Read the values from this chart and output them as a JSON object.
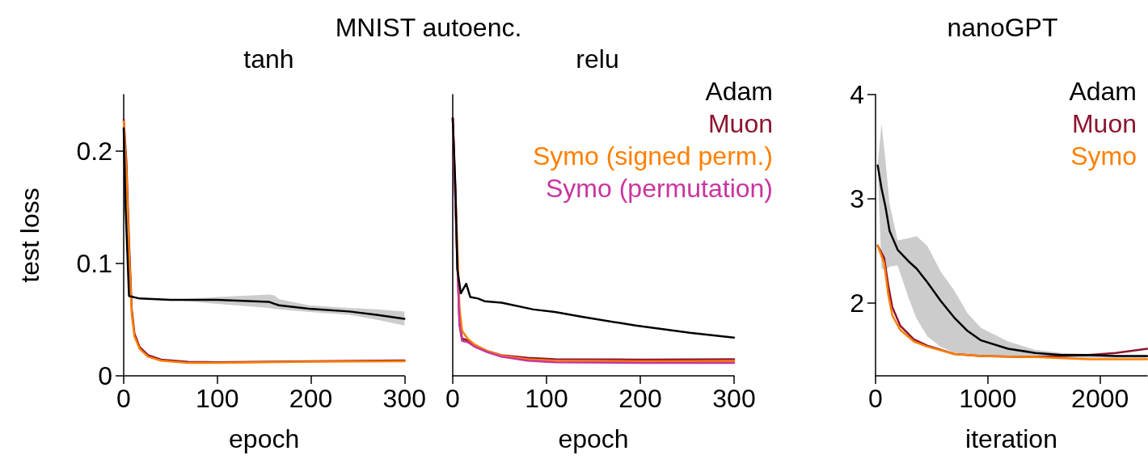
{
  "chart_data": [
    {
      "type": "line",
      "title": "MNIST autoenc.",
      "subtitle": "tanh",
      "xlabel": "epoch",
      "ylabel": "test loss",
      "xlim": [
        0,
        300
      ],
      "xticks": [
        0,
        100,
        200,
        300
      ],
      "ylim": [
        0,
        0.25
      ],
      "yticks": [
        0,
        0.1,
        0.2
      ],
      "series": [
        {
          "color": "#000000",
          "x": [
            0,
            2,
            5.7,
            17,
            50,
            100,
            155,
            161,
            166,
            198,
            241,
            270,
            300
          ],
          "values": [
            0.22,
            0.15,
            0.071,
            0.0687,
            0.0675,
            0.0675,
            0.0658,
            0.064,
            0.0627,
            0.0596,
            0.0572,
            0.0543,
            0.0507
          ],
          "lower": [
            0.22,
            0.15,
            0.071,
            0.0687,
            0.0675,
            0.064,
            0.0603,
            0.0595,
            0.059,
            0.0567,
            0.0543,
            0.05,
            0.0447
          ],
          "upper": [
            0.22,
            0.15,
            0.071,
            0.0687,
            0.0675,
            0.07,
            0.0722,
            0.0715,
            0.068,
            0.0627,
            0.0603,
            0.059,
            0.0572
          ]
        },
        {
          "color": "#8c1530",
          "x": [
            0,
            2.9,
            5.7,
            8.6,
            11.5,
            17,
            26,
            40,
            69,
            100,
            200,
            300
          ],
          "values": [
            0.228,
            0.19,
            0.119,
            0.059,
            0.0376,
            0.0256,
            0.0184,
            0.0144,
            0.0124,
            0.012,
            0.013,
            0.0136
          ]
        },
        {
          "color": "#ff7f00",
          "x": [
            0,
            2.9,
            5.7,
            8.6,
            11.5,
            17,
            26,
            40,
            69,
            100,
            200,
            300
          ],
          "values": [
            0.226,
            0.18,
            0.11,
            0.055,
            0.035,
            0.024,
            0.017,
            0.0135,
            0.0115,
            0.0115,
            0.0125,
            0.013
          ]
        }
      ]
    },
    {
      "type": "line",
      "subtitle": "relu",
      "xlabel": "epoch",
      "xlim": [
        0,
        300
      ],
      "xticks": [
        0,
        100,
        200,
        300
      ],
      "ylim": [
        0,
        0.25
      ],
      "tick_labels": "x",
      "legend": "top right",
      "series": [
        {
          "name": "Adam",
          "color": "#000000",
          "x": [
            0,
            2.9,
            4.9,
            8.6,
            14.4,
            18.7,
            27,
            34,
            52,
            86,
            109,
            138,
            195,
            253,
            300
          ],
          "values": [
            0.229,
            0.167,
            0.095,
            0.0734,
            0.0818,
            0.07,
            0.0687,
            0.0663,
            0.065,
            0.059,
            0.0567,
            0.0524,
            0.0447,
            0.0383,
            0.034
          ]
        },
        {
          "name": "Muon",
          "color": "#8c1530",
          "x": [
            0,
            4.3,
            7.2,
            10,
            15.8,
            23,
            37,
            52,
            80,
            109,
            200,
            300
          ],
          "values": [
            0.229,
            0.119,
            0.047,
            0.033,
            0.0316,
            0.027,
            0.022,
            0.0184,
            0.016,
            0.0148,
            0.0144,
            0.0148
          ]
        },
        {
          "name": "Symo (signed perm.)",
          "color": "#ff7f00",
          "x": [
            0,
            4.3,
            7.2,
            10,
            15.8,
            23,
            37,
            52,
            80,
            109,
            200,
            300
          ],
          "values": [
            0.229,
            0.13,
            0.06,
            0.04,
            0.033,
            0.028,
            0.022,
            0.018,
            0.0148,
            0.0135,
            0.013,
            0.0132
          ]
        },
        {
          "name": "Symo (permutation)",
          "color": "#c8359f",
          "x": [
            0,
            4.3,
            7.2,
            10,
            15.8,
            23,
            37,
            52,
            80,
            109,
            200,
            300
          ],
          "values": [
            0.229,
            0.115,
            0.045,
            0.031,
            0.03,
            0.026,
            0.021,
            0.017,
            0.0135,
            0.012,
            0.0115,
            0.0115
          ]
        }
      ]
    },
    {
      "type": "line",
      "title": "nanoGPT",
      "xlabel": "iteration",
      "xlim": [
        0,
        2420
      ],
      "xticks": [
        0,
        1000,
        2000
      ],
      "ylim": [
        1.3,
        4
      ],
      "yticks": [
        2,
        3,
        4
      ],
      "legend": "top right",
      "series": [
        {
          "name": "Adam",
          "color": "#000000",
          "x": [
            19,
            53,
            89,
            125,
            197,
            293,
            365,
            460,
            580,
            700,
            820,
            940,
            1180,
            1420,
            1659,
            1899,
            2139,
            2420
          ],
          "values": [
            3.32,
            3.1,
            2.92,
            2.69,
            2.51,
            2.4,
            2.33,
            2.2,
            2.02,
            1.86,
            1.73,
            1.64,
            1.56,
            1.52,
            1.5,
            1.5,
            1.49,
            1.49
          ],
          "lower": [
            3.32,
            2.33,
            2.31,
            2.35,
            2.36,
            2.05,
            1.85,
            1.68,
            1.58,
            1.52,
            1.5,
            1.49,
            1.48,
            1.47,
            1.47,
            1.47,
            1.47,
            1.47
          ],
          "upper": [
            3.32,
            3.72,
            3.36,
            2.95,
            2.6,
            2.62,
            2.64,
            2.55,
            2.3,
            2.12,
            1.9,
            1.76,
            1.63,
            1.55,
            1.52,
            1.51,
            1.5,
            1.5
          ]
        },
        {
          "name": "Muon",
          "color": "#8c1530",
          "x": [
            19,
            77,
            113,
            149,
            221,
            341,
            460,
            700,
            940,
            1420,
            1899,
            2139,
            2420
          ],
          "values": [
            2.55,
            2.43,
            2.17,
            1.96,
            1.78,
            1.65,
            1.59,
            1.51,
            1.49,
            1.48,
            1.5,
            1.52,
            1.56
          ]
        },
        {
          "name": "Symo",
          "color": "#ff7f00",
          "x": [
            19,
            77,
            113,
            149,
            221,
            341,
            460,
            700,
            940,
            1420,
            1899,
            2139,
            2420
          ],
          "values": [
            2.55,
            2.38,
            2.08,
            1.88,
            1.74,
            1.63,
            1.58,
            1.51,
            1.49,
            1.48,
            1.46,
            1.46,
            1.46
          ]
        }
      ]
    }
  ]
}
